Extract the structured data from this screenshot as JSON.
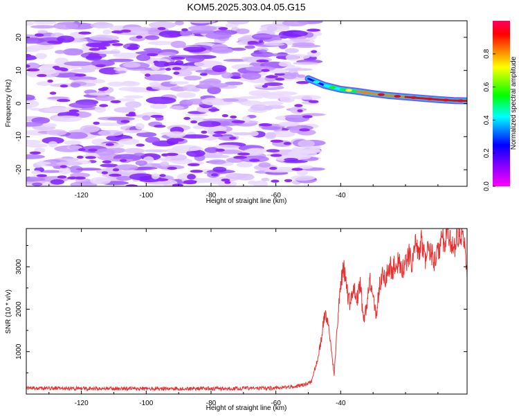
{
  "title": "KOM5.2025.303.04.05.G15",
  "chart_data": [
    {
      "type": "heatmap",
      "title": "KOM5.2025.303.04.05.G15",
      "xlabel": "Height of straight line (km)",
      "ylabel": "Frequency (Hz)",
      "xlim": [
        -137,
        -1
      ],
      "ylim": [
        -25,
        25
      ],
      "x_ticks": [
        -120,
        -100,
        -80,
        -60,
        -40
      ],
      "y_ticks": [
        -20,
        -10,
        0,
        10,
        20
      ],
      "colorbar": {
        "label": "Normalized spectral amplitude",
        "range": [
          0,
          1
        ],
        "ticks": [
          0.0,
          0.2,
          0.4,
          0.6,
          0.8
        ],
        "colors": [
          "#ff00ff",
          "#8a00ff",
          "#0000ff",
          "#00ffff",
          "#00ff00",
          "#ffff00",
          "#ff8000",
          "#ff0000",
          "#ff0060"
        ]
      },
      "noise_region": {
        "x_range": [
          -137,
          -48
        ],
        "typical_amplitude": [
          0.02,
          0.25
        ]
      },
      "signal_ridge": {
        "x": [
          -50,
          -45,
          -40,
          -35,
          -30,
          -25,
          -20,
          -15,
          -10,
          -5,
          -1
        ],
        "y": [
          7.5,
          5.5,
          4.3,
          3.7,
          3.0,
          2.4,
          2.0,
          1.6,
          1.2,
          0.9,
          0.8
        ],
        "amplitude": [
          0.3,
          0.45,
          0.6,
          0.75,
          0.9,
          0.85,
          0.95,
          0.9,
          0.95,
          0.9,
          0.95
        ]
      }
    },
    {
      "type": "line",
      "xlabel": "Height of straight line (km)",
      "ylabel": "SNR (10 * v/v)",
      "xlim": [
        -137,
        -1
      ],
      "ylim": [
        0,
        3900
      ],
      "x_ticks": [
        -120,
        -100,
        -80,
        -60,
        -40
      ],
      "y_ticks": [
        1000,
        2000,
        3000
      ],
      "line_color": "#e83030",
      "series": [
        {
          "name": "SNR",
          "baseline": 100,
          "x": [
            -137,
            -120,
            -100,
            -80,
            -60,
            -52,
            -49,
            -47,
            -46,
            -45,
            -44,
            -43,
            -42,
            -41,
            -40,
            -39,
            -38,
            -37,
            -36,
            -35,
            -34,
            -33,
            -32,
            -31,
            -30,
            -29,
            -28,
            -27,
            -26,
            -25,
            -24,
            -23,
            -22,
            -21,
            -20,
            -19,
            -18,
            -17,
            -16,
            -15,
            -14,
            -13,
            -12,
            -11,
            -10,
            -9,
            -8,
            -7,
            -6,
            -5,
            -4,
            -3,
            -2,
            -1
          ],
          "y": [
            140,
            130,
            130,
            130,
            140,
            200,
            300,
            850,
            1300,
            1850,
            1700,
            1100,
            450,
            1650,
            2600,
            2950,
            2400,
            2100,
            2550,
            2200,
            2650,
            1750,
            2000,
            2700,
            2200,
            1900,
            2550,
            2900,
            2700,
            3050,
            2850,
            3150,
            3100,
            2950,
            3050,
            3300,
            3100,
            3500,
            3250,
            3600,
            3200,
            3400,
            3300,
            3100,
            3300,
            3700,
            3600,
            3800,
            3500,
            3400,
            3800,
            3750,
            3600,
            2900
          ]
        }
      ]
    }
  ]
}
